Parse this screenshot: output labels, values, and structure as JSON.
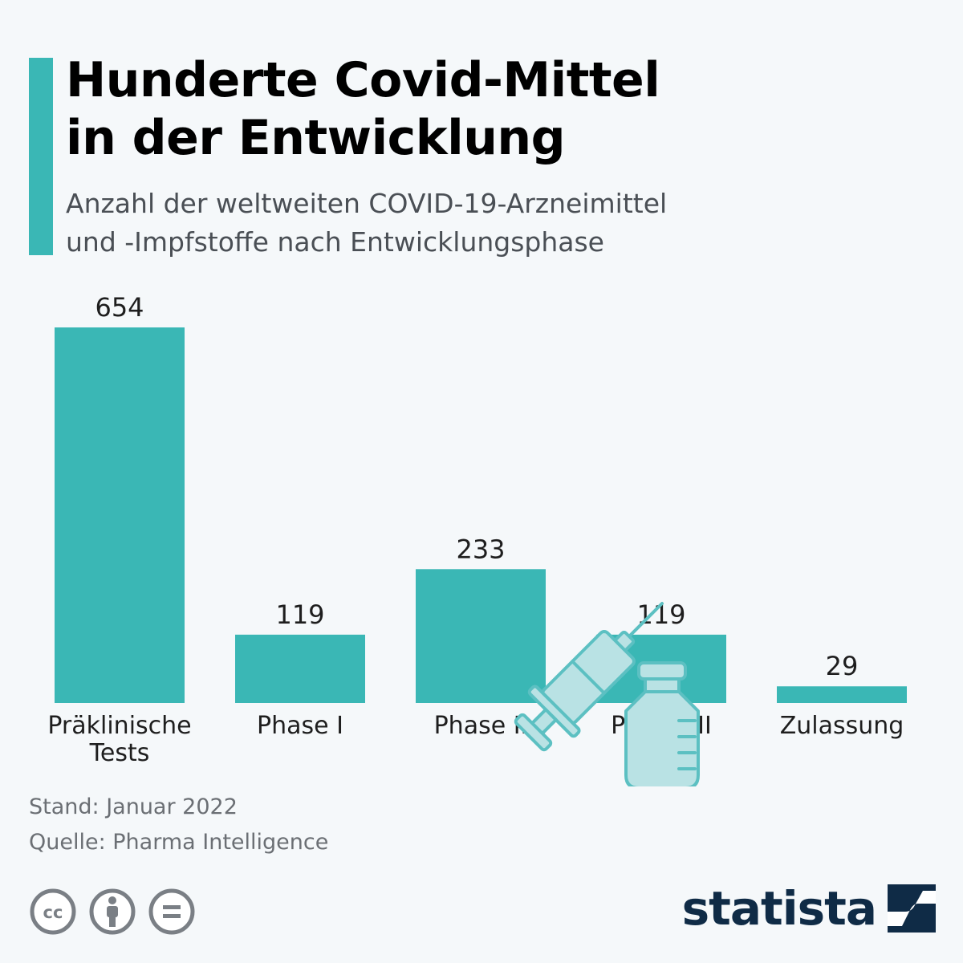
{
  "header": {
    "title_lines": [
      "Hunderte Covid-Mittel",
      "in der Entwicklung"
    ],
    "subtitle_lines": [
      "Anzahl der weltweiten COVID-19-Arzneimittel",
      "und -Impfstoffe nach Entwicklungsphase"
    ]
  },
  "chart_data": {
    "type": "bar",
    "categories": [
      [
        "Präklinische",
        "Tests"
      ],
      [
        "Phase I"
      ],
      [
        "Phase II"
      ],
      [
        "Phase III"
      ],
      [
        "Zulassung"
      ]
    ],
    "values": [
      654,
      119,
      233,
      119,
      29
    ],
    "ylim": [
      0,
      654
    ],
    "grid": false,
    "data_labels": true
  },
  "footer": {
    "date_note": "Stand: Januar 2022",
    "source_note": "Quelle: Pharma Intelligence",
    "brand": "statista"
  },
  "colors": {
    "accent": "#3ab7b5",
    "bar": "#3ab7b5",
    "background": "#f5f8fa",
    "brand": "#0f2b46",
    "illustration": "#5cc0c2",
    "illustration_fill": "#b9e2e4"
  },
  "icons": {
    "illustration": "vaccine-vial-syringe-icon",
    "license": [
      "cc-icon",
      "attribution-icon",
      "no-derivatives-icon"
    ],
    "brand_logo": "statista-logo-icon"
  }
}
